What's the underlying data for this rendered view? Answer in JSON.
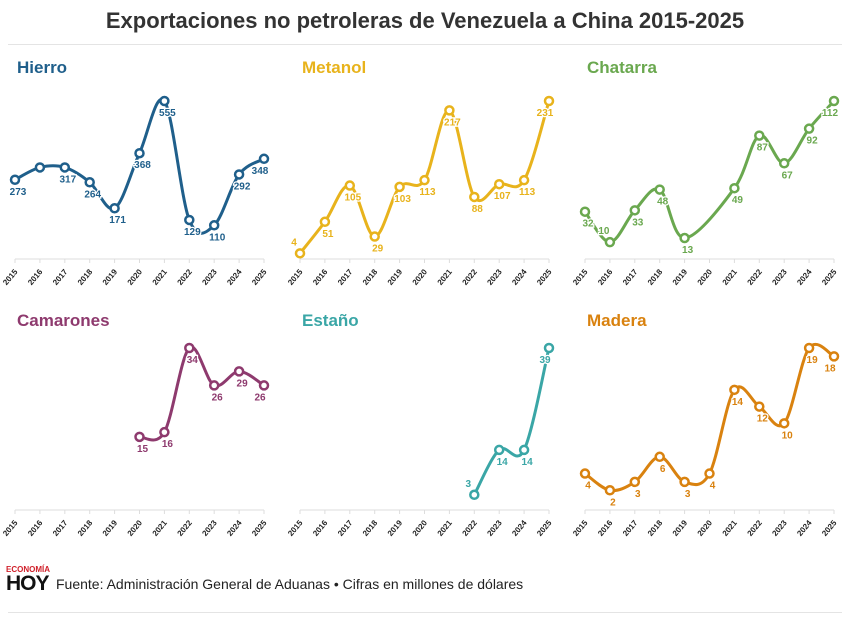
{
  "title": "Exportaciones no petroleras de Venezuela a China 2015-2025",
  "footer": {
    "logo_top": "ECONOMÍA",
    "logo_bottom": "HOY",
    "source": "Fuente: Administración General de Aduanas • Cifras en millones de dólares"
  },
  "chart_data": [
    {
      "type": "line",
      "title": "Hierro",
      "color": "#1f5f8b",
      "x": [
        2015,
        2016,
        2017,
        2018,
        2019,
        2020,
        2021,
        2022,
        2023,
        2024,
        2025
      ],
      "values": [
        273,
        317,
        317,
        264,
        171,
        368,
        555,
        129,
        110,
        292,
        348
      ],
      "labels": [
        "273",
        "",
        "317",
        "264",
        "171",
        "368",
        "555",
        "129",
        "110",
        "292",
        "348"
      ]
    },
    {
      "type": "line",
      "title": "Metanol",
      "color": "#e8b31c",
      "x": [
        2015,
        2016,
        2017,
        2018,
        2019,
        2020,
        2021,
        2022,
        2023,
        2024,
        2025
      ],
      "values": [
        4,
        51,
        105,
        29,
        103,
        113,
        217,
        88,
        107,
        113,
        231
      ],
      "labels": [
        "4",
        "51",
        "105",
        "29",
        "103",
        "113",
        "217",
        "88",
        "107",
        "113",
        "231"
      ]
    },
    {
      "type": "line",
      "title": "Chatarra",
      "color": "#6aa84f",
      "x": [
        2015,
        2016,
        2017,
        2018,
        2019,
        2020,
        2021,
        2022,
        2023,
        2024,
        2025
      ],
      "values": [
        32,
        10,
        33,
        48,
        13,
        null,
        49,
        87,
        67,
        92,
        112
      ],
      "labels": [
        "32",
        "10",
        "33",
        "48",
        "13",
        "",
        "49",
        "87",
        "67",
        "92",
        "112"
      ]
    },
    {
      "type": "line",
      "title": "Camarones",
      "color": "#8e3a6e",
      "x": [
        2015,
        2016,
        2017,
        2018,
        2019,
        2020,
        2021,
        2022,
        2023,
        2024,
        2025
      ],
      "values": [
        null,
        null,
        null,
        null,
        null,
        15,
        16,
        34,
        26,
        29,
        26
      ],
      "labels": [
        "",
        "",
        "",
        "",
        "",
        "15",
        "16",
        "34",
        "26",
        "29",
        "26"
      ]
    },
    {
      "type": "line",
      "title": "Estaño",
      "color": "#3aa6a6",
      "x": [
        2015,
        2016,
        2017,
        2018,
        2019,
        2020,
        2021,
        2022,
        2023,
        2024,
        2025
      ],
      "values": [
        null,
        null,
        null,
        null,
        null,
        null,
        null,
        3,
        14,
        14,
        39
      ],
      "labels": [
        "",
        "",
        "",
        "",
        "",
        "",
        "",
        "3",
        "14",
        "14",
        "39"
      ]
    },
    {
      "type": "line",
      "title": "Madera",
      "color": "#d9820f",
      "x": [
        2015,
        2016,
        2017,
        2018,
        2019,
        2020,
        2021,
        2022,
        2023,
        2024,
        2025
      ],
      "values": [
        4,
        2,
        3,
        6,
        3,
        4,
        14,
        12,
        10,
        19,
        18
      ],
      "labels": [
        "4",
        "2",
        "3",
        "6",
        "3",
        "4",
        "14",
        "12",
        "10",
        "19",
        "18"
      ]
    }
  ]
}
